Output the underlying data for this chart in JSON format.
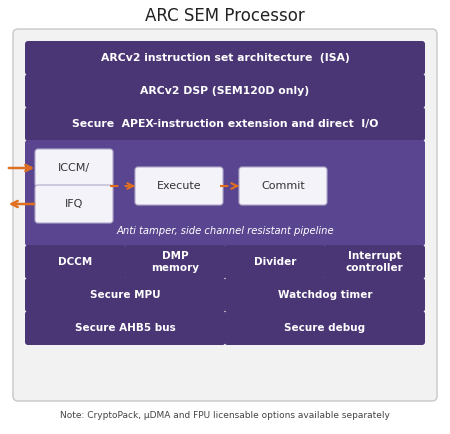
{
  "title": "ARC SEM Processor",
  "note": "Note: CryptoPack, μDMA and FPU licensable options available separately",
  "bg_color": "#ffffff",
  "outer_bg": "#f0f0f0",
  "outer_edge": "#cccccc",
  "purple": "#4a3575",
  "purple_mid": "#5a4590",
  "white_box": "#f5f3fa",
  "orange": "#e07020",
  "row1": "ARCv2 instruction set architecture  (ISA)",
  "row2": "ARCv2 DSP (SEM120D only)",
  "row3": "Secure  APEX-instruction extension and direct  I/O",
  "pipeline_label": "Anti tamper, side channel resistant pipeline",
  "bottom_rows": [
    [
      {
        "label": "DCCM"
      },
      {
        "label": "DMP\nmemory"
      },
      {
        "label": "Divider"
      },
      {
        "label": "Interrupt\ncontroller"
      }
    ],
    [
      {
        "label": "Secure MPU"
      },
      {
        "label": "Watchdog timer"
      }
    ],
    [
      {
        "label": "Secure AHB5 bus"
      },
      {
        "label": "Secure debug"
      }
    ]
  ]
}
